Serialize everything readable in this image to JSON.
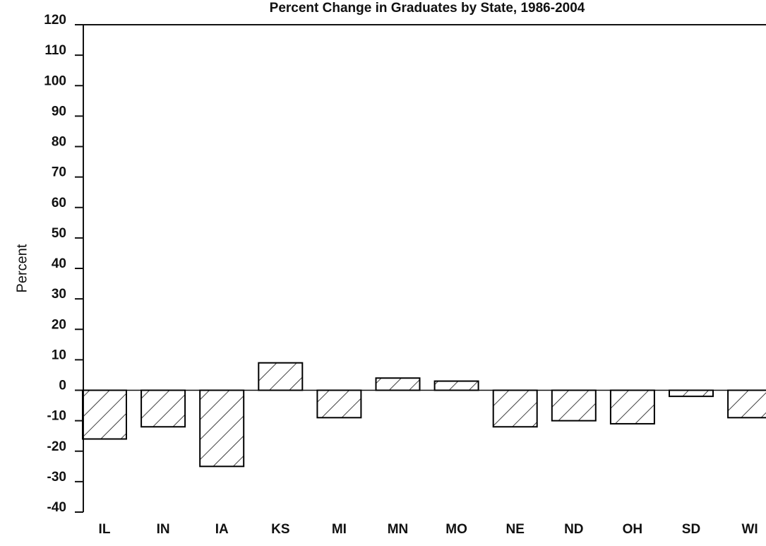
{
  "chart_data": {
    "type": "bar",
    "title": "Percent Change in Graduates by State, 1986-2004",
    "y_label": "Percent",
    "categories": [
      "IL",
      "IN",
      "IA",
      "KS",
      "MI",
      "MN",
      "MO",
      "NE",
      "ND",
      "OH",
      "SD",
      "WI"
    ],
    "values": [
      -16,
      -12,
      -25,
      9,
      -9,
      4,
      3,
      -12,
      -10,
      -11,
      -2,
      -9
    ],
    "color": "#000000",
    "ylim": [
      -40,
      120
    ],
    "yticks": [
      -40,
      -30,
      -20,
      -10,
      0,
      10,
      20,
      30,
      40,
      50,
      60,
      70,
      80,
      90,
      100,
      110,
      120
    ],
    "grid": false
  }
}
